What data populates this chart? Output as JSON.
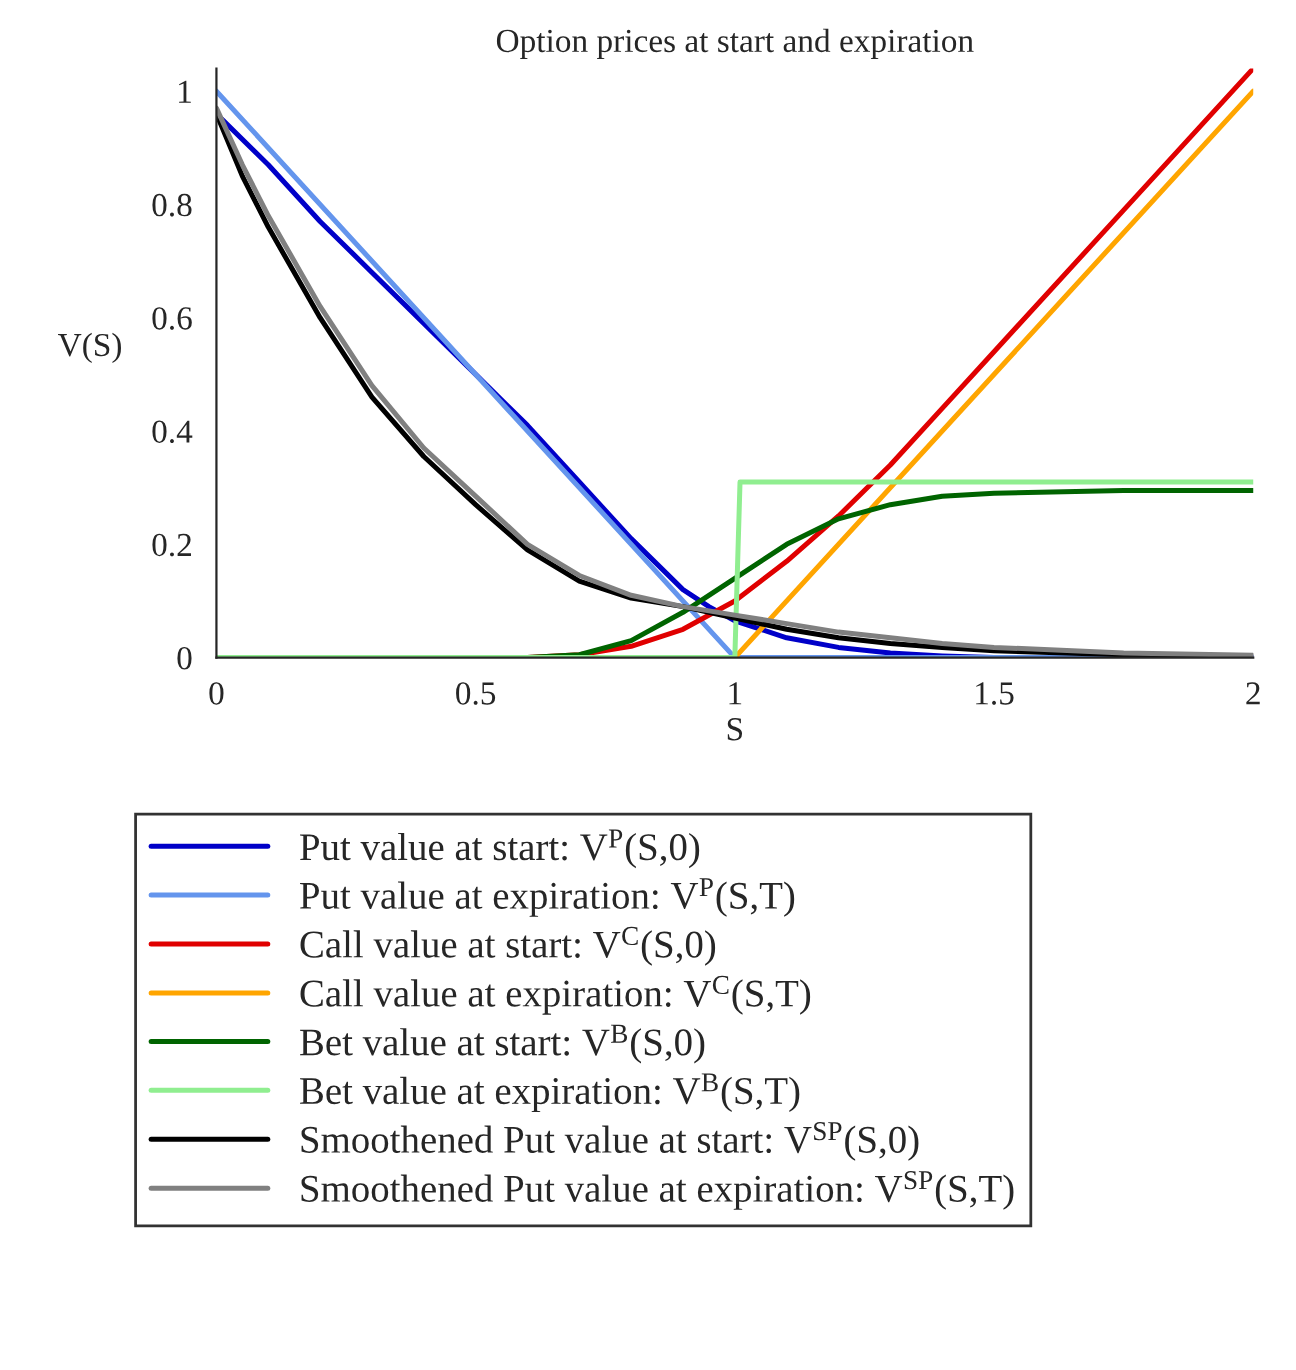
{
  "chart_data": {
    "type": "line",
    "title": "Option prices at start and expiration",
    "xlabel": "S",
    "ylabel": "V(S)",
    "xlim": [
      0,
      2
    ],
    "ylim": [
      0,
      1.04
    ],
    "xticks": [
      0,
      0.5,
      1,
      1.5,
      2
    ],
    "yticks": [
      0,
      0.2,
      0.4,
      0.6,
      0.8,
      1
    ],
    "grid": false,
    "legend": "bottom",
    "marker": "none",
    "line_style": "solid",
    "series": [
      {
        "name": "Put value at start: V$^{P}$(S,0)",
        "color": "#0000c8",
        "x": [
          0,
          0.1,
          0.2,
          0.3,
          0.4,
          0.5,
          0.6,
          0.7,
          0.8,
          0.9,
          0.95,
          1.0,
          1.1,
          1.2,
          1.3,
          1.4,
          1.5,
          2
        ],
        "values": [
          0.96,
          0.87,
          0.77,
          0.68,
          0.59,
          0.5,
          0.41,
          0.31,
          0.21,
          0.12,
          0.09,
          0.065,
          0.035,
          0.018,
          0.008,
          0.003,
          0,
          0
        ]
      },
      {
        "name": "Put value at expiration: V$^{P}$(S,T)",
        "color": "#6495ed",
        "x": [
          0,
          1,
          2
        ],
        "values": [
          1,
          0,
          0
        ]
      },
      {
        "name": "Call value at start: V$^{C}$(S,0)",
        "color": "#e00000",
        "x": [
          0,
          0.6,
          0.7,
          0.8,
          0.9,
          1.0,
          1.1,
          1.2,
          1.3,
          1.4,
          1.5,
          1.75,
          2.0
        ],
        "values": [
          0,
          0,
          0.005,
          0.02,
          0.05,
          0.1,
          0.17,
          0.25,
          0.34,
          0.44,
          0.54,
          0.79,
          1.04
        ]
      },
      {
        "name": "Call value at expiration: V$^{C}$(S,T)",
        "color": "#ffa500",
        "x": [
          0,
          1,
          2
        ],
        "values": [
          0,
          0,
          1
        ]
      },
      {
        "name": "Bet value at start: V$^{B}$(S,0)",
        "color": "#006400",
        "x": [
          0,
          0.6,
          0.7,
          0.8,
          0.9,
          1.0,
          1.1,
          1.2,
          1.3,
          1.4,
          1.5,
          1.75,
          2.0
        ],
        "values": [
          0,
          0,
          0.005,
          0.03,
          0.08,
          0.14,
          0.2,
          0.245,
          0.27,
          0.285,
          0.29,
          0.295,
          0.295
        ]
      },
      {
        "name": "Bet value at expiration: V$^{B}$(S,T)",
        "color": "#90ee90",
        "x": [
          0,
          1,
          1.01,
          2
        ],
        "values": [
          0,
          0,
          0.31,
          0.31
        ]
      },
      {
        "name": "Smoothened Put value at start: V$^{SP}$(S,0)",
        "color": "#000000",
        "x": [
          0,
          0.05,
          0.1,
          0.2,
          0.3,
          0.4,
          0.5,
          0.6,
          0.7,
          0.8,
          0.9,
          1.0,
          1.1,
          1.2,
          1.3,
          1.4,
          1.5,
          1.75,
          2.0
        ],
        "values": [
          0.96,
          0.85,
          0.76,
          0.6,
          0.46,
          0.355,
          0.27,
          0.19,
          0.135,
          0.105,
          0.09,
          0.07,
          0.05,
          0.035,
          0.025,
          0.018,
          0.012,
          0.005,
          0.003
        ]
      },
      {
        "name": "Smoothened Put value at expiration: V$^{SP}$(S,T)",
        "color": "#808080",
        "x": [
          0,
          0.05,
          0.1,
          0.2,
          0.3,
          0.4,
          0.5,
          0.6,
          0.7,
          0.8,
          0.9,
          1.0,
          1.1,
          1.2,
          1.3,
          1.4,
          1.5,
          1.75,
          2.0
        ],
        "values": [
          0.97,
          0.87,
          0.78,
          0.62,
          0.48,
          0.37,
          0.285,
          0.2,
          0.145,
          0.11,
          0.09,
          0.075,
          0.06,
          0.045,
          0.035,
          0.025,
          0.018,
          0.008,
          0.004
        ]
      }
    ]
  }
}
